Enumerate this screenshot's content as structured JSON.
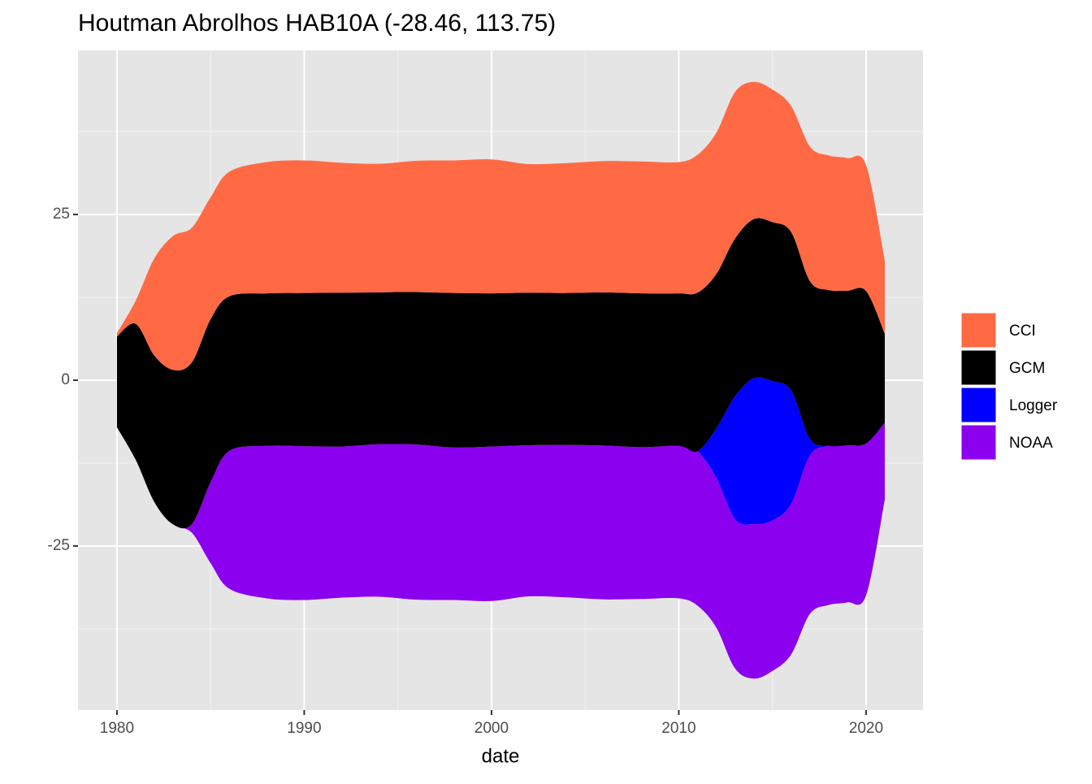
{
  "chart_data": {
    "type": "stream",
    "title": "Houtman Abrolhos HAB10A (-28.46, 113.75)",
    "x_label": "date",
    "x": [
      1980,
      1981,
      1982,
      1983,
      1984,
      1985,
      1986,
      1988,
      1990,
      1992,
      1994,
      1996,
      1998,
      2000,
      2002,
      2004,
      2006,
      2008,
      2010,
      2011,
      2012,
      2013,
      2014,
      2015,
      2016,
      2017,
      2018,
      2019,
      2020,
      2021
    ],
    "series": [
      {
        "name": "NOAA",
        "color": "#8b00ee",
        "values": [
          0,
          0,
          0,
          0,
          1.3,
          12.2,
          20.8,
          23,
          23.2,
          22.8,
          23,
          23.4,
          23,
          23.3,
          22.8,
          23,
          23.2,
          22.9,
          23,
          23.3,
          22.6,
          22.5,
          23.3,
          22.7,
          22.7,
          23.9,
          24,
          23.7,
          22.9,
          11.6
        ]
      },
      {
        "name": "Logger",
        "color": "#0000ff",
        "values": [
          0,
          0,
          0,
          0,
          0,
          0,
          0,
          0,
          0,
          0,
          0,
          0,
          0,
          0,
          0,
          0,
          0,
          0,
          0,
          0,
          7.4,
          18.5,
          22,
          21,
          17.1,
          2.5,
          0,
          0,
          0,
          0
        ]
      },
      {
        "name": "GCM",
        "color": "#000000",
        "values": [
          13.7,
          20.5,
          22.1,
          23.3,
          24.4,
          24.6,
          23.3,
          23,
          23.1,
          23.2,
          22.9,
          23,
          23.3,
          23.1,
          23,
          22.9,
          23.1,
          23.2,
          23,
          23.9,
          23.3,
          23.8,
          24,
          24,
          23.9,
          23.8,
          23.5,
          23.3,
          23,
          13.4
        ]
      },
      {
        "name": "CCI",
        "color": "#ff6a45",
        "values": [
          0.5,
          3.5,
          14.7,
          20.2,
          20.3,
          18.4,
          18.8,
          19.8,
          20,
          19.6,
          19.4,
          19.8,
          20,
          20.2,
          19.4,
          19.6,
          19.8,
          19.9,
          19.8,
          20.8,
          21.3,
          22.1,
          20.7,
          20,
          19,
          20.3,
          20.3,
          20,
          19,
          11
        ]
      }
    ],
    "xlim": [
      1977.92,
      2023.04
    ],
    "xticks": [
      1980,
      1990,
      2000,
      2010,
      2020
    ],
    "ylim": [
      -49.75,
      49.75
    ],
    "yticks": [
      -25,
      0,
      25
    ],
    "grid": true,
    "legend": "right",
    "offset": "silhouette"
  }
}
